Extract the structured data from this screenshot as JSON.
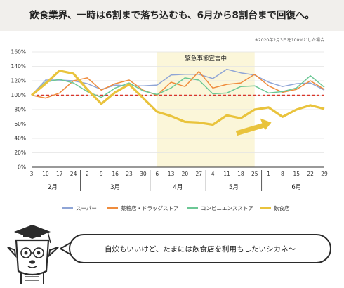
{
  "header": {
    "title": "飲食業界、一時は6割まで落ち込むも、6月から8割台まで回復へ。"
  },
  "chart_data": {
    "type": "line",
    "note": "※2020年2月3日を100%とした場合",
    "highlight_label": "緊急事態宣言中",
    "highlight_range": [
      "4/6",
      "5/25"
    ],
    "ylim": [
      0,
      160
    ],
    "yticks": [
      "0%",
      "20%",
      "40%",
      "60%",
      "80%",
      "100%",
      "120%",
      "140%",
      "160%"
    ],
    "baseline": 100,
    "x": [
      "3",
      "10",
      "17",
      "24",
      "2",
      "9",
      "16",
      "23",
      "30",
      "6",
      "13",
      "20",
      "27",
      "4",
      "11",
      "18",
      "25",
      "1",
      "8",
      "15",
      "22",
      "29"
    ],
    "months": [
      {
        "label": "2月",
        "start": 0,
        "end": 3
      },
      {
        "label": "3月",
        "start": 4,
        "end": 8
      },
      {
        "label": "4月",
        "start": 9,
        "end": 12
      },
      {
        "label": "5月",
        "start": 13,
        "end": 16
      },
      {
        "label": "6月",
        "start": 17,
        "end": 21
      }
    ],
    "series": [
      {
        "name": "スーパー",
        "color": "#8fa5d6",
        "values": [
          100,
          121,
          121,
          120,
          116,
          108,
          114,
          113,
          113,
          114,
          128,
          129,
          129,
          123,
          136,
          131,
          128,
          118,
          112,
          116,
          117,
          107
        ]
      },
      {
        "name": "薬粧店・ドラッグストア",
        "color": "#ef8c3d",
        "values": [
          100,
          96,
          103,
          120,
          124,
          107,
          116,
          121,
          107,
          100,
          118,
          112,
          133,
          110,
          115,
          117,
          129,
          113,
          104,
          108,
          120,
          108
        ]
      },
      {
        "name": "コンビニエンスストア",
        "color": "#6cc795",
        "values": [
          100,
          118,
          122,
          117,
          105,
          97,
          110,
          117,
          106,
          101,
          110,
          124,
          121,
          102,
          103,
          112,
          113,
          103,
          105,
          110,
          127,
          111
        ]
      },
      {
        "name": "飲食店",
        "color": "#e9c33c",
        "values": [
          100,
          116,
          134,
          130,
          108,
          88,
          104,
          115,
          96,
          77,
          71,
          63,
          62,
          59,
          72,
          68,
          80,
          83,
          70,
          80,
          86,
          81
        ]
      }
    ]
  },
  "bubble": {
    "text": "自炊もいいけど、たまには飲食店を利用もしたいシカネ〜"
  }
}
